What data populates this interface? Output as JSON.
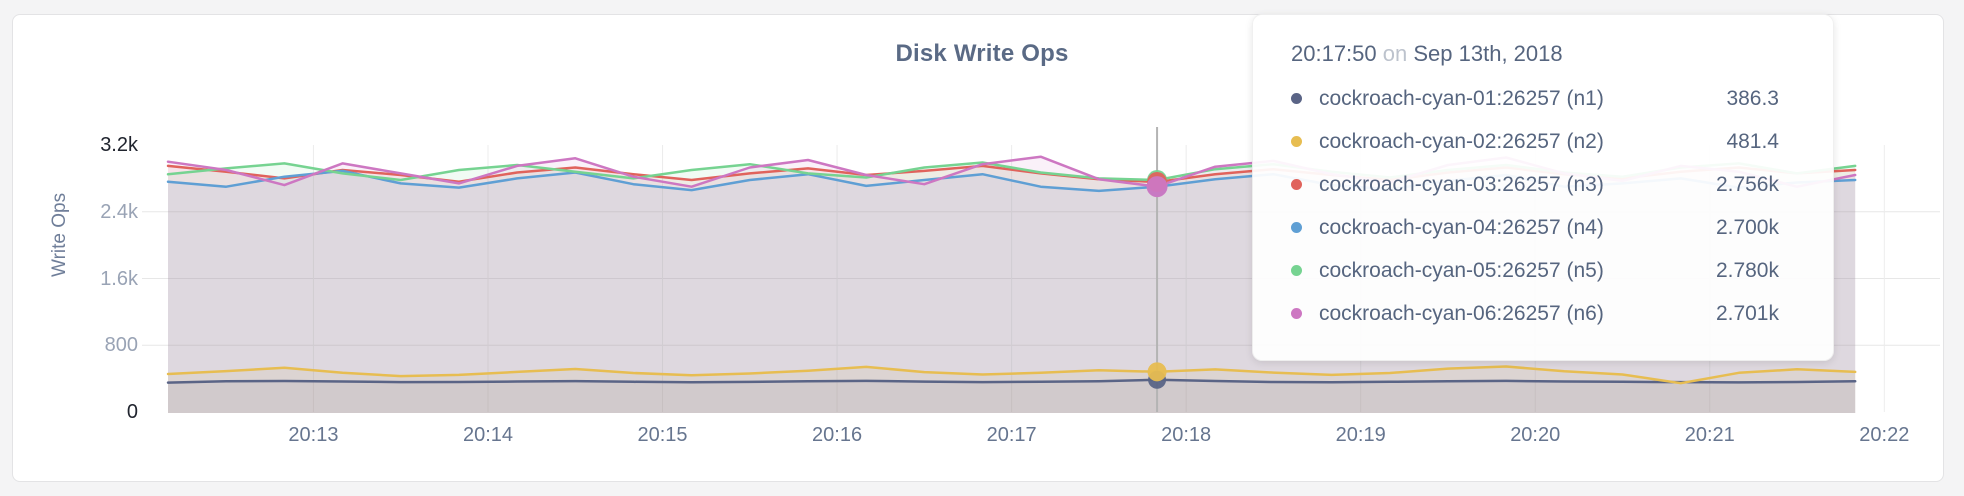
{
  "page": {
    "title": "Disk Write Ops"
  },
  "colors": {
    "accent_slate": "#5a6486",
    "accent_gold": "#e7bd51",
    "accent_red": "#e0635c",
    "accent_blue": "#5f9fd4",
    "accent_green": "#76d391",
    "accent_pink": "#cd77c2",
    "grid": "#e7e7e7",
    "hover_line": "#b4b4b4"
  },
  "tooltip": {
    "time": "20:17:50",
    "connector": "on",
    "date": "Sep 13th, 2018",
    "rows": [
      {
        "name": "cockroach-cyan-01:26257 (n1)",
        "value": "386.3",
        "color": "#5a6486"
      },
      {
        "name": "cockroach-cyan-02:26257 (n2)",
        "value": "481.4",
        "color": "#e7bd51"
      },
      {
        "name": "cockroach-cyan-03:26257 (n3)",
        "value": "2.756k",
        "color": "#e0635c"
      },
      {
        "name": "cockroach-cyan-04:26257 (n4)",
        "value": "2.700k",
        "color": "#5f9fd4"
      },
      {
        "name": "cockroach-cyan-05:26257 (n5)",
        "value": "2.780k",
        "color": "#76d391"
      },
      {
        "name": "cockroach-cyan-06:26257 (n6)",
        "value": "2.701k",
        "color": "#cd77c2"
      }
    ]
  },
  "chart_data": {
    "type": "line",
    "title": "Disk Write Ops",
    "xlabel": "",
    "ylabel": "Write Ops",
    "ylim": [
      0,
      3500
    ],
    "grid": "on",
    "legend_position": "tooltip-overlay",
    "x_start_time": "20:12:10",
    "x_interval_seconds": 20,
    "x_ticks": [
      {
        "label": "20:13",
        "t": 50
      },
      {
        "label": "20:14",
        "t": 110
      },
      {
        "label": "20:15",
        "t": 170
      },
      {
        "label": "20:16",
        "t": 230
      },
      {
        "label": "20:17",
        "t": 290
      },
      {
        "label": "20:18",
        "t": 350
      },
      {
        "label": "20:19",
        "t": 410
      },
      {
        "label": "20:20",
        "t": 470
      },
      {
        "label": "20:21",
        "t": 530
      },
      {
        "label": "20:22",
        "t": 590
      }
    ],
    "y_ticks": [
      {
        "label": "0",
        "value": 0,
        "grid": false,
        "emphasis": true
      },
      {
        "label": "800",
        "value": 800,
        "grid": true,
        "emphasis": false
      },
      {
        "label": "1.6k",
        "value": 1600,
        "grid": true,
        "emphasis": false
      },
      {
        "label": "2.4k",
        "value": 2400,
        "grid": true,
        "emphasis": false
      },
      {
        "label": "3.2k",
        "value": 3200,
        "grid": false,
        "emphasis": true
      }
    ],
    "hover_index": 17,
    "hover_time": "20:17:50",
    "series": [
      {
        "name": "cockroach-cyan-01:26257 (n1)",
        "color": "#5a6486",
        "values": [
          352,
          368,
          372,
          365,
          358,
          360,
          366,
          370,
          362,
          357,
          361,
          368,
          373,
          364,
          358,
          363,
          369,
          386.3,
          371,
          360,
          356,
          362,
          368,
          373,
          366,
          362,
          358,
          355,
          360,
          368
        ]
      },
      {
        "name": "cockroach-cyan-02:26257 (n2)",
        "color": "#e7bd51",
        "values": [
          455,
          490,
          530,
          470,
          430,
          445,
          480,
          515,
          468,
          440,
          462,
          495,
          540,
          478,
          450,
          470,
          500,
          481.4,
          510,
          472,
          445,
          468,
          520,
          545,
          488,
          450,
          345,
          470,
          512,
          480
        ]
      },
      {
        "name": "cockroach-cyan-03:26257 (n3)",
        "color": "#e0635c",
        "values": [
          2950,
          2880,
          2800,
          2900,
          2840,
          2760,
          2870,
          2930,
          2850,
          2780,
          2860,
          2920,
          2840,
          2890,
          2950,
          2860,
          2790,
          2756,
          2850,
          2910,
          2840,
          2780,
          2870,
          2930,
          2850,
          2800,
          2880,
          2930,
          2860,
          2900
        ]
      },
      {
        "name": "cockroach-cyan-04:26257 (n4)",
        "color": "#5f9fd4",
        "values": [
          2760,
          2700,
          2820,
          2890,
          2740,
          2690,
          2800,
          2870,
          2730,
          2660,
          2780,
          2850,
          2710,
          2780,
          2850,
          2700,
          2650,
          2700,
          2790,
          2850,
          2720,
          2670,
          2770,
          2840,
          2700,
          2740,
          2800,
          2690,
          2750,
          2780
        ]
      },
      {
        "name": "cockroach-cyan-05:26257 (n5)",
        "color": "#76d391",
        "values": [
          2850,
          2920,
          2980,
          2860,
          2780,
          2900,
          2960,
          2880,
          2800,
          2900,
          2970,
          2860,
          2810,
          2930,
          2990,
          2870,
          2800,
          2780,
          2910,
          2970,
          2880,
          2810,
          2900,
          2960,
          2870,
          2820,
          2930,
          2980,
          2860,
          2950
        ]
      },
      {
        "name": "cockroach-cyan-06:26257 (n6)",
        "color": "#cd77c2",
        "values": [
          3000,
          2900,
          2720,
          2980,
          2860,
          2740,
          2950,
          3040,
          2820,
          2700,
          2930,
          3020,
          2840,
          2730,
          2970,
          3060,
          2790,
          2701,
          2940,
          3010,
          2850,
          2750,
          2960,
          3050,
          2860,
          2770,
          2950,
          2880,
          2700,
          2840
        ]
      }
    ]
  }
}
